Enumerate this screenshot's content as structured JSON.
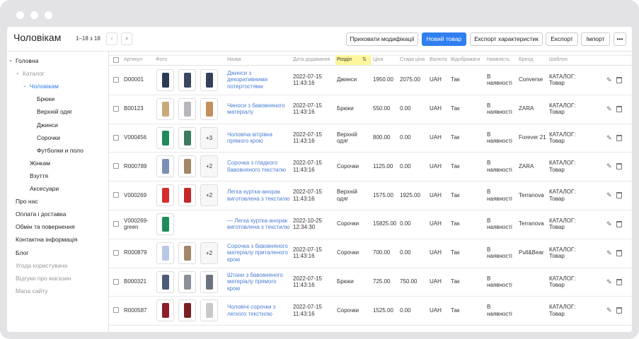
{
  "header": {
    "title": "Чоловікам",
    "pagination": "1–18 з 18",
    "buttons": [
      {
        "label": "Приховати модифікації",
        "primary": false
      },
      {
        "label": "Новий товар",
        "primary": true
      },
      {
        "label": "Експорт характеристик",
        "primary": false
      },
      {
        "label": "Експорт",
        "primary": false
      },
      {
        "label": "Імпорт",
        "primary": false
      },
      {
        "label": "•••",
        "primary": false
      }
    ]
  },
  "sidebar": [
    {
      "label": "Головна",
      "level": 0,
      "expanded": true
    },
    {
      "label": "Каталог",
      "level": 1,
      "expanded": true,
      "muted": true
    },
    {
      "label": "Чоловікам",
      "level": 2,
      "expanded": true,
      "active": true
    },
    {
      "label": "Брюки",
      "level": 3
    },
    {
      "label": "Верхній одяг",
      "level": 3
    },
    {
      "label": "Джинси",
      "level": 3
    },
    {
      "label": "Сорочки",
      "level": 3
    },
    {
      "label": "Футболки и поло",
      "level": 3
    },
    {
      "label": "Жінкам",
      "level": 2
    },
    {
      "label": "Взуття",
      "level": 2
    },
    {
      "label": "Аксесуари",
      "level": 2
    },
    {
      "label": "Про нас",
      "level": 0
    },
    {
      "label": "Оплата і доставка",
      "level": 0
    },
    {
      "label": "Обмін та повернення",
      "level": 0
    },
    {
      "label": "Контактна інформація",
      "level": 0
    },
    {
      "label": "Блог",
      "level": 0
    },
    {
      "label": "Угода користувача",
      "level": 0,
      "muted": true
    },
    {
      "label": "Відгуки про магазин",
      "level": 0,
      "muted": true
    },
    {
      "label": "Мапа сайту",
      "level": 0,
      "muted": true
    }
  ],
  "table": {
    "columns": {
      "sku": "Артикул",
      "photo": "Фото",
      "name": "Назва",
      "date": "Дата додавання",
      "section": "Розділ",
      "price": "Ціна",
      "old_price": "Стара ціна",
      "currency": "Валюта",
      "visible": "Відображати",
      "availability": "Наявність",
      "brand": "Бренд",
      "template": "Шаблон"
    },
    "sorted_column": "section",
    "rows": [
      {
        "sku": "D00001",
        "name": "Джинси з декоративними потертостями",
        "date": "2022-07-15 11:43:16",
        "section": "Джинси",
        "price": "1950.00",
        "old_price": "2075.00",
        "currency": "UAH",
        "visible": "Так",
        "availability": "В наявності",
        "brand": "Converse",
        "template": "КАТАЛОГ: Товар"
      },
      {
        "sku": "B00123",
        "name": "Чиноси з бавовняного матеріалу",
        "date": "2022-07-15 11:43:16",
        "section": "Брюки",
        "price": "550.00",
        "old_price": "0.00",
        "currency": "UAH",
        "visible": "Так",
        "availability": "В наявності",
        "brand": "ZARA",
        "template": "КАТАЛОГ: Товар"
      },
      {
        "sku": "V000456",
        "name": "Чоловіча вітрівка прямого крою",
        "date": "2022-07-15 11:43:16",
        "section": "Верхній одяг",
        "price": "800.00",
        "old_price": "0.00",
        "currency": "UAH",
        "visible": "Так",
        "availability": "В наявності",
        "brand": "Forever 21",
        "template": "КАТАЛОГ: Товар",
        "photos_more": "+3"
      },
      {
        "sku": "R000789",
        "name": "Сорочка з гладкого бавовняного текстилю",
        "date": "2022-07-15 11:43:16",
        "section": "Сорочки",
        "price": "1125.00",
        "old_price": "0.00",
        "currency": "UAH",
        "visible": "Так",
        "availability": "В наявності",
        "brand": "ZARA",
        "template": "КАТАЛОГ: Товар",
        "photos_more": "+2"
      },
      {
        "sku": "V000269",
        "name": "Легка куртка-анорак виготовлена з текстилю",
        "date": "2022-07-15 11:43:16",
        "section": "Верхній одяг",
        "price": "1575.00",
        "old_price": "1925.00",
        "currency": "UAH",
        "visible": "Так",
        "availability": "В наявності",
        "brand": "Terranova",
        "template": "КАТАЛОГ: Товар",
        "photos_more": "+2"
      },
      {
        "sku": "V000269-green",
        "name": "— Легка куртка-анорак виготовлена з текстилю",
        "date": "2022-10-25 12:34:30",
        "section": "Сорочки",
        "price": "15825.00",
        "old_price": "0.00",
        "currency": "UAH",
        "visible": "Так",
        "availability": "В наявності",
        "brand": "Terranova",
        "template": "КАТАЛОГ: Товар"
      },
      {
        "sku": "R000879",
        "name": "Сорочка з бавовняного матеріалу приталеного крою",
        "date": "2022-07-15 11:43:16",
        "section": "Сорочки",
        "price": "700.00",
        "old_price": "0.00",
        "currency": "UAH",
        "visible": "Так",
        "availability": "В наявності",
        "brand": "Pull&Bear",
        "template": "КАТАЛОГ: Товар",
        "photos_more": "+2"
      },
      {
        "sku": "B000321",
        "name": "Штани з бавовняного матеріалу прямого крою",
        "date": "2022-07-15 11:43:16",
        "section": "Брюки",
        "price": "725.00",
        "old_price": "750.00",
        "currency": "UAH",
        "visible": "Так",
        "availability": "В наявності",
        "template": "КАТАЛОГ: Товар"
      },
      {
        "sku": "R000587",
        "name": "Чоловічі сорочки з легкого текстилю",
        "date": "2022-07-15 11:43:16",
        "section": "Сорочки",
        "price": "1525.00",
        "old_price": "0.00",
        "currency": "UAH",
        "visible": "Так",
        "availability": "В наявності",
        "template": "КАТАЛОГ: Товар"
      }
    ]
  }
}
